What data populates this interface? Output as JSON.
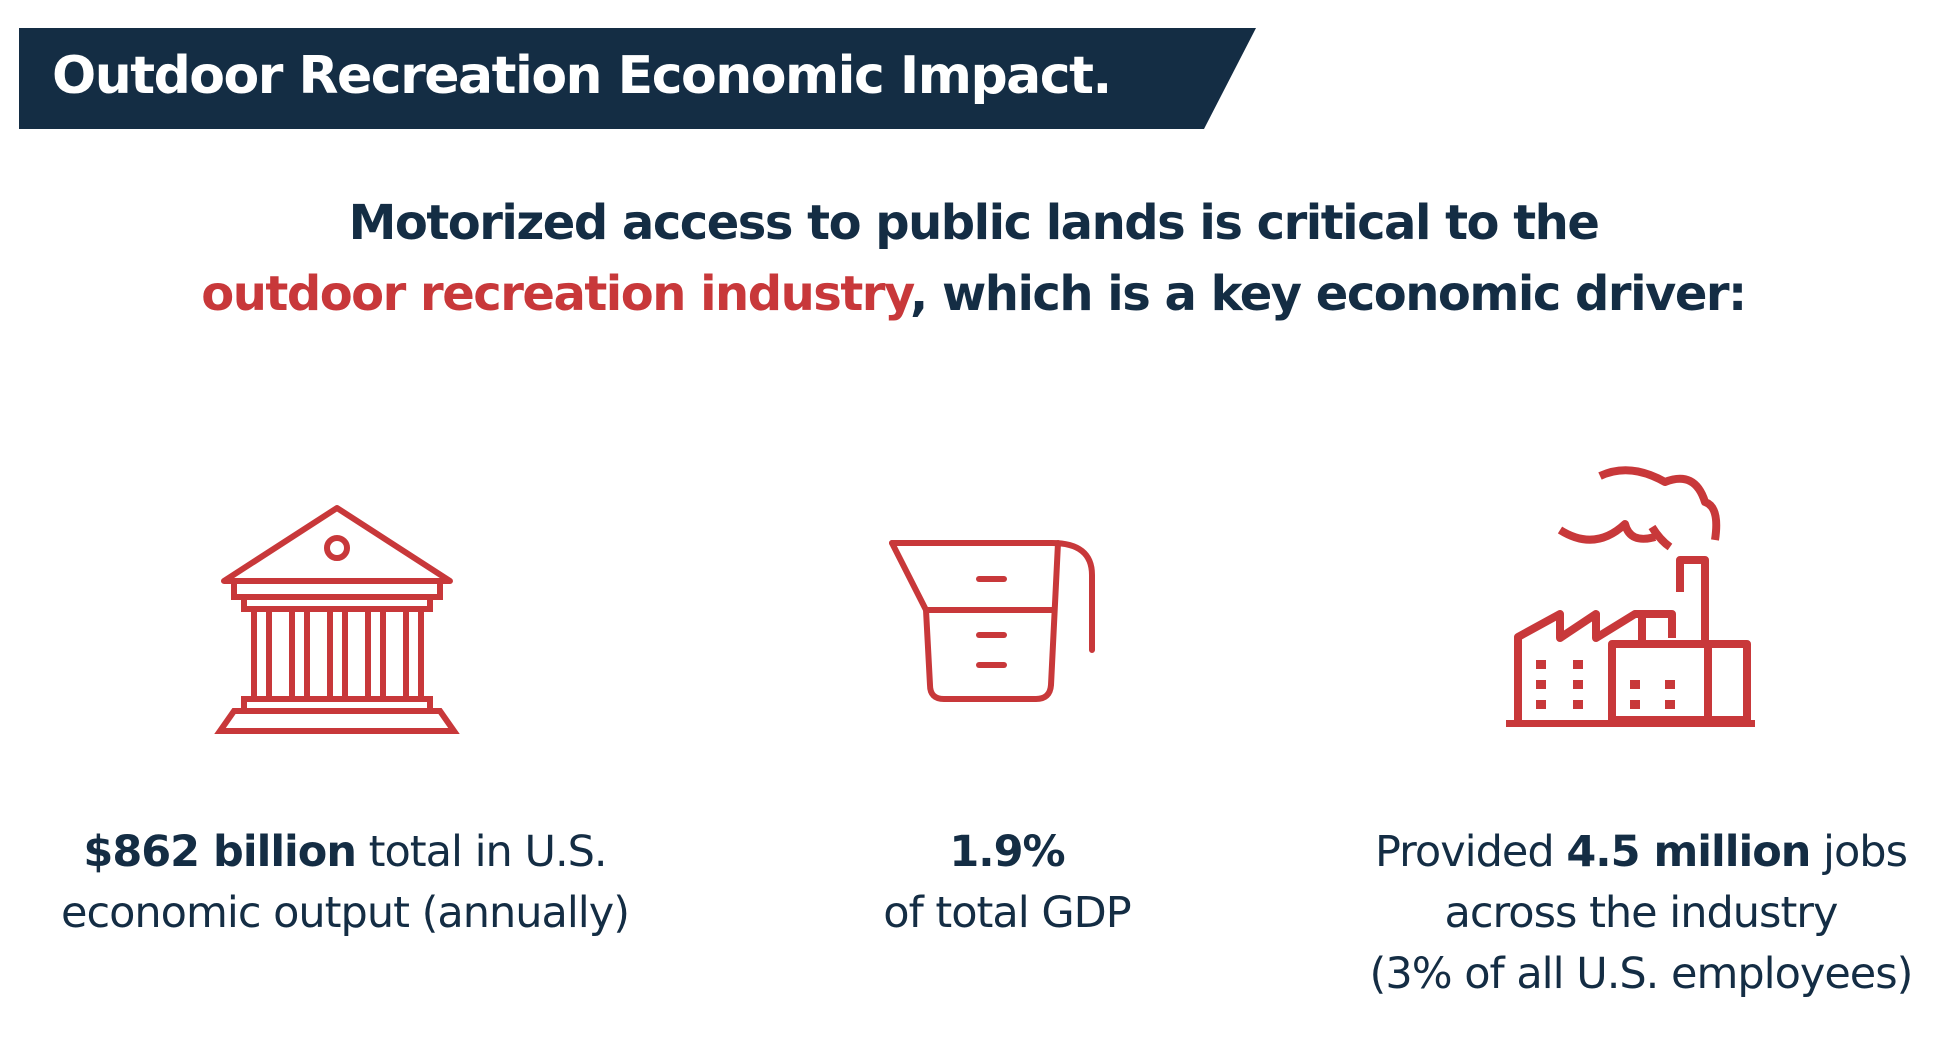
{
  "header": {
    "title": "Outdoor Recreation Economic Impact."
  },
  "subtitle": {
    "line1": "Motorized access to public lands is critical to the",
    "highlight": "outdoor recreation industry",
    "line2_rest": ", which is a key economic driver:"
  },
  "stats": [
    {
      "icon": "bank-building-icon",
      "bold": "$862 billion",
      "rest1": " total in U.S.",
      "line2": "economic output (annually)"
    },
    {
      "icon": "measuring-cup-icon",
      "bold": "1.9%",
      "line2": "of total GDP"
    },
    {
      "icon": "factory-icon",
      "pre": "Provided ",
      "bold": "4.5 million",
      "rest1": " jobs",
      "line2": "across the industry",
      "line3": "(3% of all U.S. employees)"
    }
  ],
  "colors": {
    "navy": "#142d44",
    "red": "#c8383a"
  }
}
